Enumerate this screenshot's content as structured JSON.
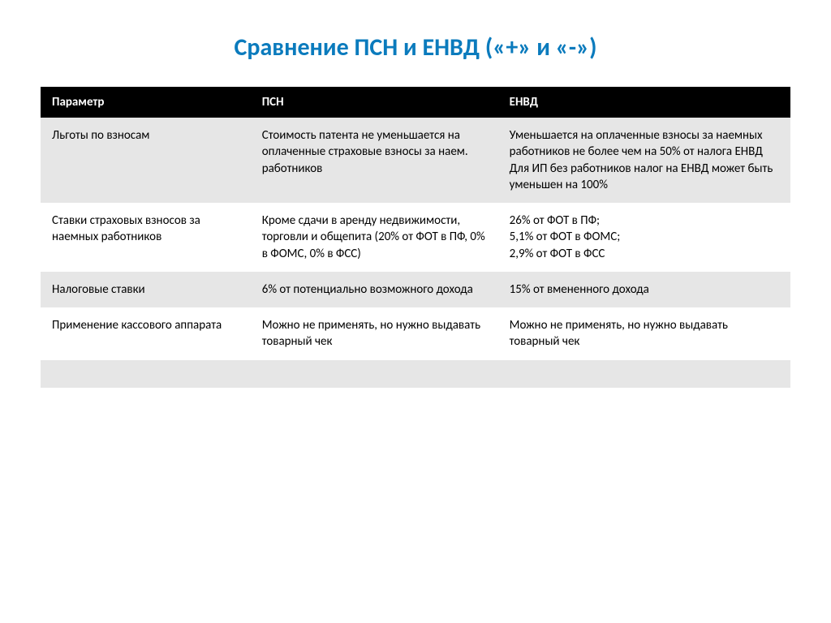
{
  "title": {
    "text": "Сравнение ПСН и ЕНВД («+» и «-»)",
    "color": "#0b7bbd",
    "fontsize": 30
  },
  "table": {
    "header_bg": "#000000",
    "header_fg": "#ffffff",
    "header_fontsize": 15,
    "body_fontsize": 15,
    "body_fg": "#000000",
    "row_odd_bg": "#e6e6e6",
    "row_even_bg": "#ffffff",
    "columns": [
      "Параметр",
      "ПСН",
      "ЕНВД"
    ],
    "rows": [
      [
        "Льготы по взносам",
        "Стоимость патента не уменьшается на оплаченные страховые взносы за наем. работников",
        "Уменьшается на оплаченные взносы за наемных работников не более чем на 50% от налога ЕНВД\nДля ИП без работников налог на ЕНВД может быть уменьшен на 100%"
      ],
      [
        "Ставки страховых взносов за наемных работников",
        "Кроме сдачи в аренду недвижимости, торговли и общепита (20% от ФОТ в ПФ, 0% в ФОМС, 0% в ФСС)",
        "26% от ФОТ в ПФ;\n5,1% от ФОТ в ФОМС;\n2,9% от ФОТ в ФСС"
      ],
      [
        "Налоговые ставки",
        "6% от потенциально возможного дохода",
        "15% от вмененного дохода"
      ],
      [
        "Применение кассового аппарата",
        "Можно не применять, но нужно выдавать товарный чек",
        "Можно не применять, но нужно выдавать товарный чек"
      ],
      [
        "",
        "",
        ""
      ],
      [
        "",
        "",
        ""
      ]
    ]
  }
}
